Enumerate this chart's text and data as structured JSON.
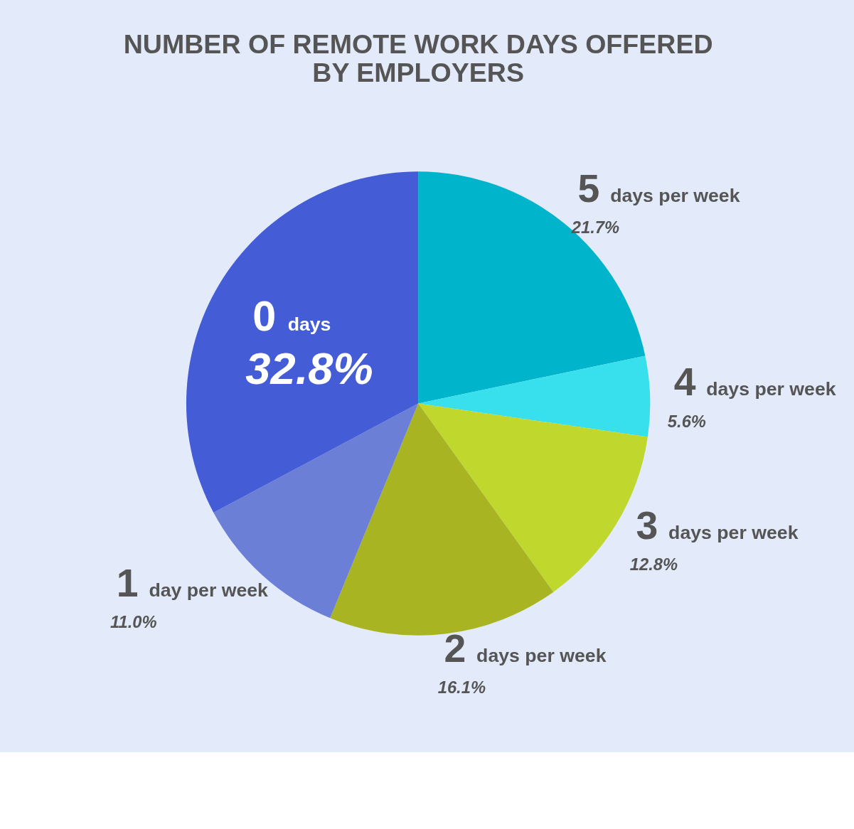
{
  "chart_data": {
    "type": "pie",
    "title": [
      "NUMBER OF REMOTE WORK DAYS OFFERED",
      "BY EMPLOYERS"
    ],
    "categories": [
      "5 days per week",
      "4 days per week",
      "3 days per week",
      "2 days per week",
      "1 day per week",
      "0 days"
    ],
    "values": [
      21.7,
      5.6,
      12.8,
      16.1,
      11.0,
      32.8
    ],
    "colors": [
      "#00b4cc",
      "#38e0ee",
      "#c0d82e",
      "#a8b422",
      "#6b7fd6",
      "#445cd6"
    ],
    "value_labels": [
      "21.7%",
      "5.6%",
      "12.8%",
      "16.1%",
      "11.0%",
      "32.8%"
    ],
    "legend": false
  }
}
